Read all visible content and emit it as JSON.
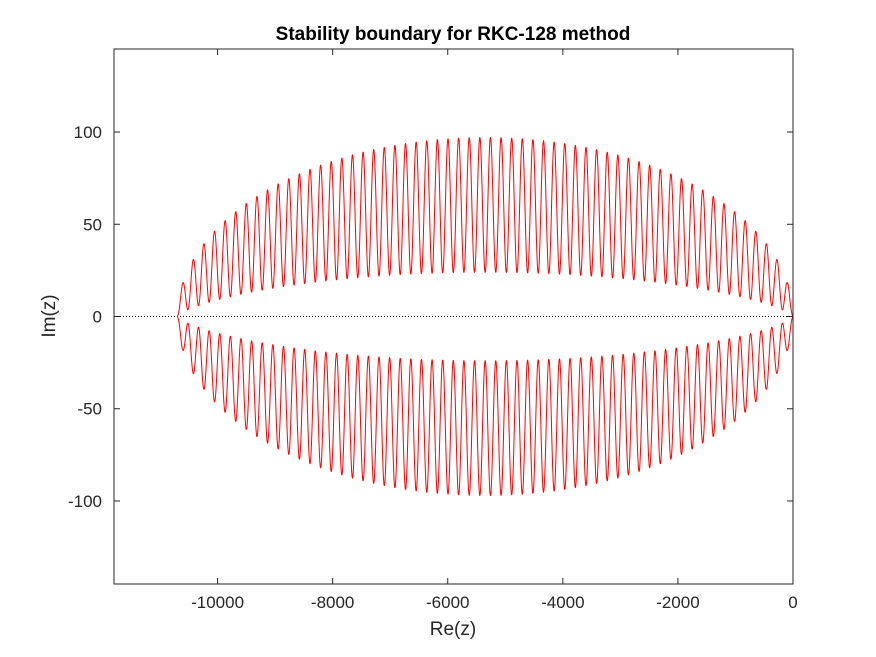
{
  "chart_data": {
    "type": "line",
    "title": "Stability boundary for RKC-128 method",
    "xlabel": "Re(z)",
    "ylabel": "Im(z)",
    "xlim": [
      -11800,
      0
    ],
    "ylim": [
      -145,
      145
    ],
    "xticks": [
      -10000,
      -8000,
      -6000,
      -4000,
      -2000,
      0
    ],
    "xtick_labels": [
      "-10000",
      "-8000",
      "-6000",
      "-4000",
      "-2000",
      "0"
    ],
    "yticks": [
      -100,
      -50,
      0,
      50,
      100
    ],
    "ytick_labels": [
      "-100",
      "-50",
      "0",
      "50",
      "100"
    ],
    "grid": false,
    "legend": "none",
    "series": [
      {
        "style": "solid",
        "color": "#ff0000",
        "method": "RKC-128",
        "stages": 128,
        "re_range": [
          -10700,
          0
        ],
        "outer_envelope_max": 97,
        "inner_envelope_max": 24
      },
      {
        "style": "dotted",
        "color": "#000000",
        "x": [
          -11800,
          0
        ],
        "y": [
          0,
          0
        ]
      }
    ]
  }
}
